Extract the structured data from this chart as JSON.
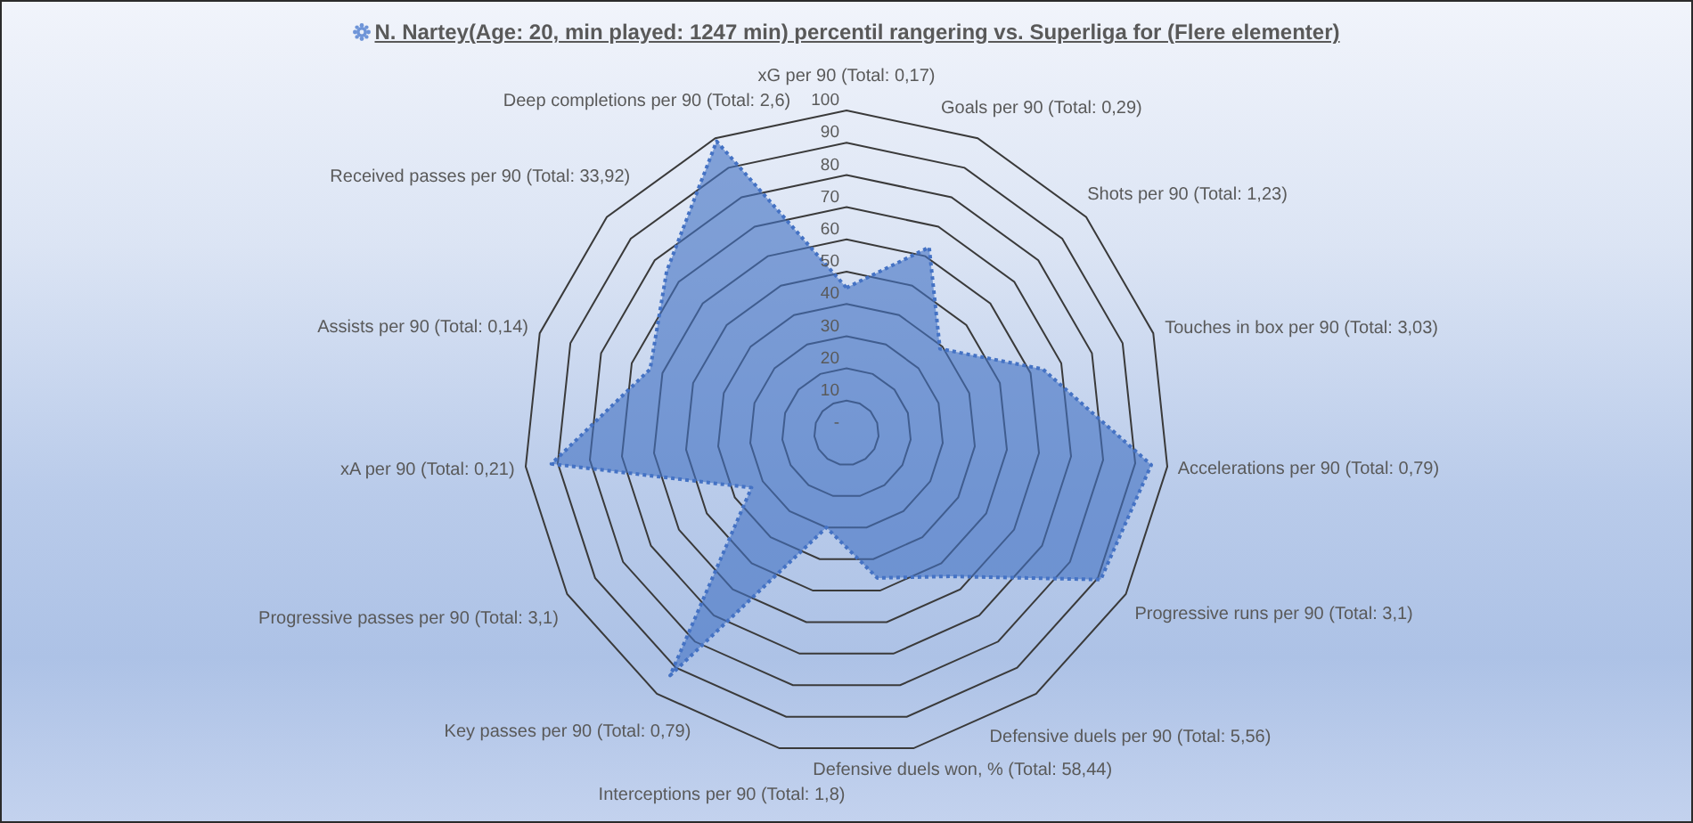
{
  "chart_data": {
    "type": "radar",
    "title": "N. Nartey(Age: 20, min played: 1247 min) percentil rangering vs. Superliga for (Flere elementer)",
    "categories": [
      "xG per 90 (Total: 0,17)",
      "Goals per 90 (Total: 0,29)",
      "Shots per 90 (Total: 1,23)",
      "Touches in box per 90 (Total: 3,03)",
      "Accelerations per 90 (Total: 0,79)",
      "Progressive runs per 90 (Total: 3,1)",
      "Defensive duels per 90 (Total: 5,56)",
      "Defensive duels won, % (Total: 58,44)",
      "Interceptions per 90 (Total: 1,8)",
      "Key passes per 90 (Total: 0,79)",
      "Progressive passes per 90 (Total: 3,1)",
      "xA per 90 (Total: 0,21)",
      "Assists per 90 (Total: 0,14)",
      "Received passes per 90 (Total: 33,92)",
      "Deep completions per 90 (Total: 2,6)"
    ],
    "series": [
      {
        "color": "#4472c4",
        "values": [
          45,
          63,
          39,
          64,
          95,
          91,
          55,
          46,
          30,
          93,
          34,
          92,
          64,
          75,
          99
        ]
      }
    ],
    "ylim": [
      0,
      100
    ],
    "yticks": [
      {
        "value": 0,
        "label": "-"
      },
      10,
      20,
      30,
      40,
      50,
      60,
      70,
      80,
      90,
      100
    ],
    "grid": true,
    "line_style": "dotted"
  }
}
